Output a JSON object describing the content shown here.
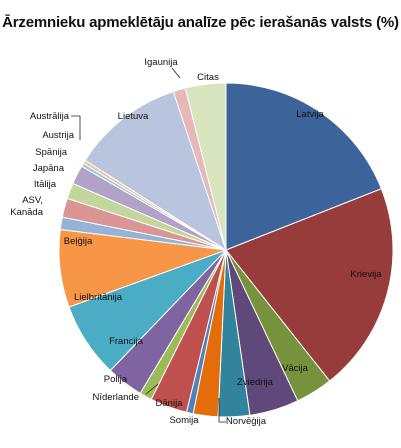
{
  "chart_data": {
    "type": "pie",
    "title": "Ārzemnieku apmeklētāju analīze pēc ierašanās valsts (%)",
    "start_angle_deg": 0,
    "direction": "clockwise",
    "legend": "none",
    "slices": [
      {
        "label": "Latvija",
        "value": 17.5,
        "color": "#3c649a"
      },
      {
        "label": "Krievija",
        "value": 18.7,
        "color": "#973c3a"
      },
      {
        "label": "Vācija",
        "value": 3.3,
        "color": "#76923c"
      },
      {
        "label": "Zviedrija",
        "value": 4.4,
        "color": "#5f497a"
      },
      {
        "label": "Norvēģija",
        "value": 2.8,
        "color": "#31849b"
      },
      {
        "label": "Somija",
        "value": 2.2,
        "color": "#e46c0a"
      },
      {
        "label": "Dānija",
        "value": 0.6,
        "color": "#4f81bd"
      },
      {
        "label": "Nīderlande",
        "value": 3.3,
        "color": "#c0504d"
      },
      {
        "label": "Polija",
        "value": 1.1,
        "color": "#9bbb59"
      },
      {
        "label": "Francija",
        "value": 3.3,
        "color": "#8064a2"
      },
      {
        "label": "Lielbritānija",
        "value": 6.7,
        "color": "#4bacc6"
      },
      {
        "label": "Beļģija",
        "value": 6.9,
        "color": "#f79646"
      },
      {
        "label": "ASV, Kanāda",
        "value": 1.1,
        "color": "#95b3d7"
      },
      {
        "label": "Itālija",
        "value": 1.7,
        "color": "#d99694"
      },
      {
        "label": "Japāna",
        "value": 1.4,
        "color": "#c3d69b"
      },
      {
        "label": "Spānija",
        "value": 1.7,
        "color": "#b2a2c7"
      },
      {
        "label": "Austrija",
        "value": 0.3,
        "color": "#93cddd"
      },
      {
        "label": "Austrālija",
        "value": 0.3,
        "color": "#fac08f"
      },
      {
        "label": "Lietuva",
        "value": 10.0,
        "color": "#b9c5df"
      },
      {
        "label": "Igaunija",
        "value": 1.1,
        "color": "#e6b9b8"
      },
      {
        "label": "Citas",
        "value": 3.6,
        "color": "#d7e4bd"
      }
    ]
  }
}
